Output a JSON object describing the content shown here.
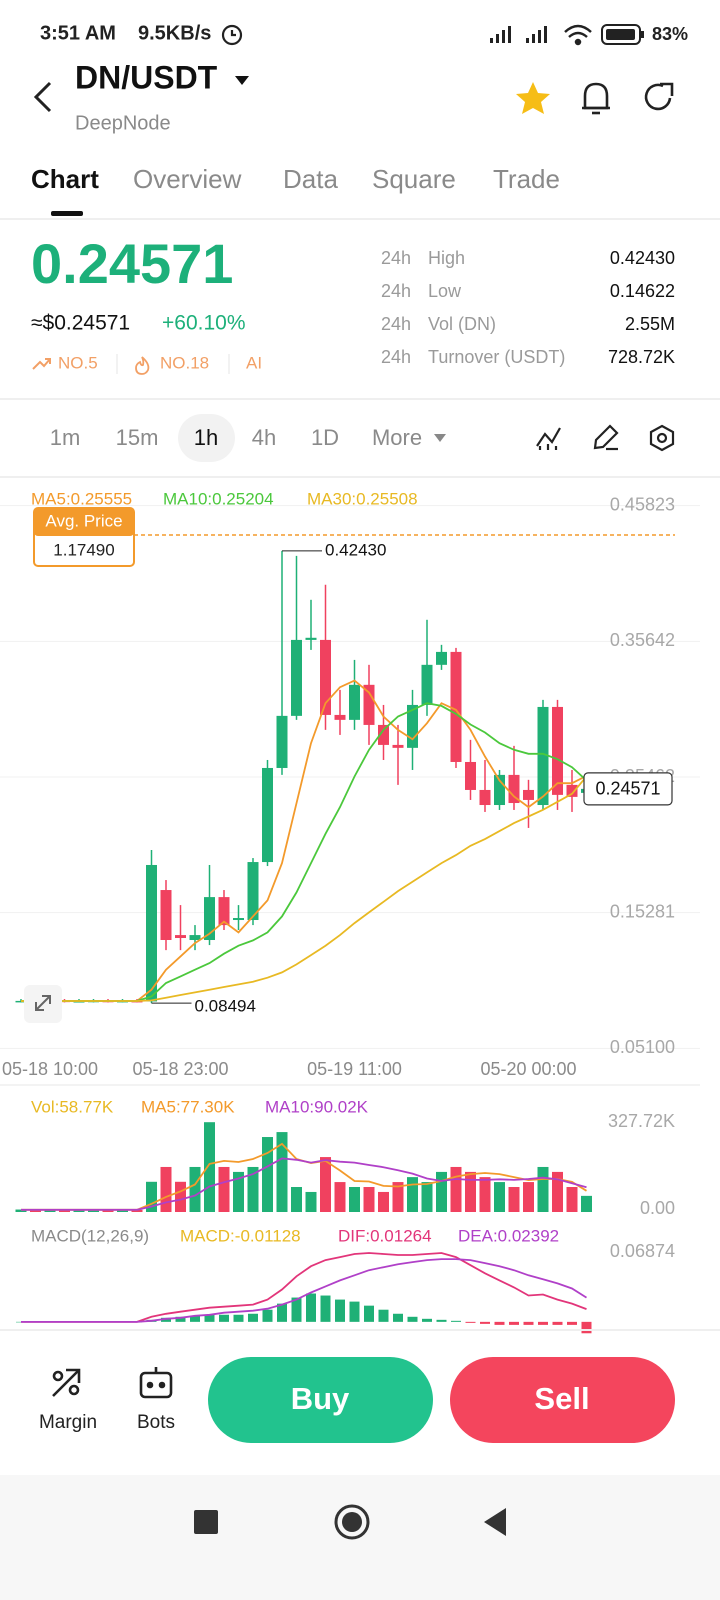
{
  "status_bar": {
    "time": "3:51 AM",
    "network_speed": "9.5KB/s",
    "battery": "83%"
  },
  "header": {
    "pair": "DN/USDT",
    "name": "DeepNode"
  },
  "tabs": [
    "Chart",
    "Overview",
    "Data",
    "Square",
    "Trade"
  ],
  "ticker": {
    "price": "0.24571",
    "usd_price": "≈$0.24571",
    "change": "+60.10%",
    "rank": "NO.5",
    "hot": "NO.18",
    "tag": "AI"
  },
  "stats": [
    {
      "period": "24h",
      "label": "High",
      "value": "0.42430"
    },
    {
      "period": "24h",
      "label": "Low",
      "value": "0.14622"
    },
    {
      "period": "24h",
      "label": "Vol (DN)",
      "value": "2.55M"
    },
    {
      "period": "24h",
      "label": "Turnover (USDT)",
      "value": "728.72K"
    }
  ],
  "intervals": [
    "1m",
    "15m",
    "1h",
    "4h",
    "1D",
    "More"
  ],
  "chart_data": [
    {
      "type": "candlestick",
      "up_color": "#1fb076",
      "down_color": "#f0415f",
      "grid": true,
      "ylim": [
        0.04,
        0.47
      ],
      "yticks": [
        {
          "value": 0.051,
          "label": "0.05100"
        },
        0.15281,
        0.25462,
        0.35642,
        0.45823
      ],
      "xticks": [
        {
          "value": 2,
          "label": "05-18 10:00"
        },
        {
          "value": 11,
          "label": "05-18 23:00"
        },
        {
          "value": 23,
          "label": "05-19 11:00"
        },
        {
          "value": 35,
          "label": "05-20 00:00"
        }
      ],
      "candles": {
        "open": [
          0.0862,
          0.0866,
          0.0864,
          0.0868,
          0.0863,
          0.0865,
          0.0867,
          0.0864,
          0.0866,
          0.0862,
          0.1698,
          0.136,
          0.1323,
          0.1323,
          0.1645,
          0.1473,
          0.1473,
          0.1908,
          0.2614,
          0.3005,
          0.3575,
          0.3575,
          0.3012,
          0.2975,
          0.3238,
          0.2937,
          0.2787,
          0.2765,
          0.3087,
          0.3388,
          0.3485,
          0.2659,
          0.2449,
          0.2336,
          0.2562,
          0.2449,
          0.2336,
          0.3072,
          0.2487,
          0.2427
        ],
        "high": [
          0.088,
          0.088,
          0.088,
          0.088,
          0.088,
          0.088,
          0.088,
          0.088,
          0.088,
          0.1998,
          0.1773,
          0.1585,
          0.1435,
          0.1886,
          0.1698,
          0.1585,
          0.1938,
          0.2674,
          0.4243,
          0.4206,
          0.3876,
          0.3989,
          0.32,
          0.3425,
          0.3388,
          0.3087,
          0.2937,
          0.32,
          0.3726,
          0.3538,
          0.3515,
          0.2825,
          0.2674,
          0.2599,
          0.278,
          0.2525,
          0.3125,
          0.3125,
          0.2599,
          0.2562
        ],
        "low": [
          0.0855,
          0.0855,
          0.0855,
          0.0855,
          0.0855,
          0.0855,
          0.0855,
          0.0855,
          0.0855,
          0.08494,
          0.1247,
          0.1247,
          0.1247,
          0.1285,
          0.1398,
          0.1398,
          0.1435,
          0.1878,
          0.2562,
          0.2975,
          0.35,
          0.29,
          0.2862,
          0.29,
          0.2787,
          0.2674,
          0.2487,
          0.2599,
          0.3005,
          0.335,
          0.2614,
          0.2374,
          0.2284,
          0.2299,
          0.2299,
          0.2164,
          0.2299,
          0.2299,
          0.2284,
          0.2374
        ],
        "close": [
          0.0866,
          0.0864,
          0.0868,
          0.0863,
          0.0865,
          0.0867,
          0.0864,
          0.0866,
          0.0862,
          0.1886,
          0.1323,
          0.1338,
          0.136,
          0.1645,
          0.1435,
          0.1488,
          0.1908,
          0.2614,
          0.3005,
          0.3575,
          0.3591,
          0.3012,
          0.2975,
          0.3238,
          0.2937,
          0.2787,
          0.2765,
          0.3087,
          0.3388,
          0.3485,
          0.2659,
          0.2449,
          0.2336,
          0.2562,
          0.2351,
          0.2374,
          0.3072,
          0.2412,
          0.2397,
          0.24571
        ]
      },
      "series": [
        {
          "name": "MA5:0.25555",
          "color": "#f39a2b",
          "values": [
            0.0865,
            0.0865,
            0.0865,
            0.0865,
            0.0865,
            0.0865,
            0.0865,
            0.0865,
            0.0865,
            0.095,
            0.11,
            0.12,
            0.13,
            0.137,
            0.146,
            0.138,
            0.15,
            0.162,
            0.19,
            0.235,
            0.28,
            0.31,
            0.322,
            0.327,
            0.318,
            0.3,
            0.29,
            0.283,
            0.295,
            0.31,
            0.305,
            0.29,
            0.27,
            0.252,
            0.24,
            0.232,
            0.24,
            0.25,
            0.25,
            0.25555
          ]
        },
        {
          "name": "MA10:0.25204",
          "color": "#4bc83c",
          "values": [
            0.0865,
            0.0865,
            0.0865,
            0.0865,
            0.0865,
            0.0865,
            0.0865,
            0.0865,
            0.0865,
            0.09,
            0.1,
            0.105,
            0.11,
            0.115,
            0.122,
            0.128,
            0.132,
            0.138,
            0.15,
            0.168,
            0.19,
            0.212,
            0.232,
            0.255,
            0.275,
            0.29,
            0.3,
            0.305,
            0.31,
            0.308,
            0.302,
            0.294,
            0.288,
            0.28,
            0.275,
            0.272,
            0.272,
            0.268,
            0.262,
            0.25204
          ]
        },
        {
          "name": "MA30:0.25508",
          "color": "#e8b923",
          "values": [
            0.0865,
            0.0865,
            0.0865,
            0.0865,
            0.0865,
            0.0865,
            0.0865,
            0.0865,
            0.0865,
            0.087,
            0.089,
            0.091,
            0.093,
            0.095,
            0.097,
            0.099,
            0.101,
            0.104,
            0.108,
            0.114,
            0.121,
            0.128,
            0.136,
            0.145,
            0.153,
            0.161,
            0.169,
            0.176,
            0.183,
            0.19,
            0.196,
            0.203,
            0.208,
            0.214,
            0.22,
            0.225,
            0.23,
            0.236,
            0.242,
            0.25508
          ]
        }
      ],
      "high_label": "0.42430",
      "low_label": "0.08494",
      "avg_price": {
        "label": "Avg. Price",
        "value": "1.17490"
      },
      "last_price": "0.24571"
    },
    {
      "type": "volume",
      "name": "Vol:58.77K",
      "color": "#e8b923",
      "ylim": [
        0,
        327720
      ],
      "yticks": [
        {
          "value": 327720,
          "label": "327.72K"
        },
        {
          "value": 0,
          "label": "0.00"
        }
      ],
      "values": [
        9000,
        7000,
        8000,
        10000,
        6000,
        8000,
        9000,
        7000,
        8000,
        110000,
        164000,
        110000,
        164000,
        327000,
        164000,
        146000,
        164000,
        273000,
        291000,
        91000,
        73000,
        200000,
        109000,
        91000,
        91000,
        73000,
        109000,
        127000,
        109000,
        146000,
        164000,
        146000,
        127000,
        109000,
        91000,
        109000,
        164000,
        146000,
        91000,
        58770
      ],
      "series": [
        {
          "name": "MA5:77.30K",
          "color": "#f39a2b",
          "values": [
            8000,
            8000,
            8000,
            8000,
            8000,
            8000,
            8000,
            8000,
            8000,
            30000,
            55000,
            75000,
            100000,
            175000,
            186000,
            182000,
            193000,
            215000,
            248000,
            193000,
            178000,
            186000,
            151000,
            113000,
            111000,
            95000,
            93000,
            100000,
            102000,
            113000,
            129000,
            138000,
            142000,
            138000,
            127000,
            116000,
            120000,
            120000,
            110000,
            77300
          ]
        },
        {
          "name": "MA10:90.02K",
          "color": "#b040c8",
          "values": [
            8000,
            8000,
            8000,
            8000,
            8000,
            8000,
            8000,
            8000,
            8000,
            20000,
            35000,
            45000,
            60000,
            93000,
            108000,
            122000,
            138000,
            166000,
            195000,
            190000,
            180000,
            189000,
            183000,
            180000,
            171000,
            163000,
            152000,
            140000,
            122000,
            113000,
            120000,
            117000,
            117000,
            119000,
            117000,
            120000,
            125000,
            119000,
            105000,
            90020
          ]
        }
      ]
    },
    {
      "type": "macd",
      "name": "MACD(12,26,9)",
      "ylim": [
        -0.012,
        0.07
      ],
      "yticks": [
        0.06874
      ],
      "histogram": {
        "name": "MACD:-0.01128",
        "color": "#e8b923",
        "values": [
          0,
          0,
          0,
          0,
          0,
          0,
          0,
          0,
          0,
          0.002,
          0.004,
          0.005,
          0.006,
          0.007,
          0.007,
          0.007,
          0.008,
          0.012,
          0.018,
          0.024,
          0.028,
          0.026,
          0.022,
          0.02,
          0.016,
          0.012,
          0.008,
          0.005,
          0.003,
          0.002,
          0.001,
          -0.001,
          -0.002,
          -0.003,
          -0.003,
          -0.003,
          -0.003,
          -0.003,
          -0.003,
          -0.01128
        ]
      },
      "series": [
        {
          "name": "DIF:0.01264",
          "color": "#e2357a",
          "values": [
            0,
            0,
            0,
            0,
            0,
            0,
            0,
            0,
            0,
            0.005,
            0.008,
            0.01,
            0.012,
            0.014,
            0.015,
            0.016,
            0.017,
            0.022,
            0.032,
            0.045,
            0.055,
            0.061,
            0.064,
            0.067,
            0.068,
            0.067,
            0.066,
            0.066,
            0.067,
            0.068,
            0.064,
            0.056,
            0.048,
            0.041,
            0.034,
            0.026,
            0.027,
            0.022,
            0.018,
            0.01264
          ]
        },
        {
          "name": "DEA:0.02392",
          "color": "#b040c8",
          "values": [
            0,
            0,
            0,
            0,
            0,
            0,
            0,
            0,
            0,
            0.001,
            0.003,
            0.004,
            0.006,
            0.007,
            0.009,
            0.01,
            0.011,
            0.013,
            0.017,
            0.022,
            0.029,
            0.035,
            0.041,
            0.046,
            0.051,
            0.054,
            0.057,
            0.059,
            0.061,
            0.062,
            0.062,
            0.061,
            0.058,
            0.055,
            0.051,
            0.046,
            0.042,
            0.038,
            0.033,
            0.02392
          ]
        }
      ]
    }
  ],
  "actions": {
    "margin": "Margin",
    "bots": "Bots",
    "buy": "Buy",
    "sell": "Sell"
  }
}
